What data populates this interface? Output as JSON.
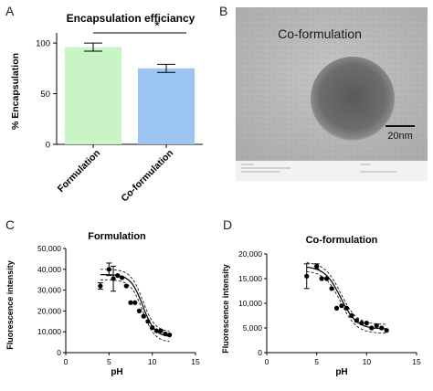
{
  "panels": {
    "a": "A",
    "b": "B",
    "c": "C",
    "d": "D"
  },
  "colors": {
    "formulation_bar": "#c9f5c6",
    "coformulation_bar": "#9cc5f2",
    "axis": "#000000",
    "tem_background": "#b9b9b9",
    "tem_particle": "#6a6a6a"
  },
  "chart_data": [
    {
      "type": "bar",
      "title": "Encapsulation efficiancy",
      "xlabel": "",
      "ylabel": "% Encapsulation",
      "categories": [
        "Formulation",
        "Co-formulation"
      ],
      "values": [
        96,
        75
      ],
      "errors": [
        4,
        4
      ],
      "ylim": [
        0,
        110
      ],
      "yticks": [
        "0",
        "50",
        "100"
      ],
      "yticks_values": [
        0,
        50,
        100
      ],
      "significance": "*",
      "grid": false
    },
    {
      "type": "scatter",
      "title": "Formulation",
      "xlabel": "pH",
      "ylabel": "Fluorescence intensity",
      "xlim": [
        0,
        15
      ],
      "ylim": [
        0,
        50000
      ],
      "xticks": [
        "0",
        "5",
        "10",
        "15"
      ],
      "xticks_values": [
        0,
        5,
        10,
        15
      ],
      "yticks": [
        "0",
        "10,000",
        "20,000",
        "30,000",
        "40,000",
        "50,000"
      ],
      "yticks_values": [
        0,
        10000,
        20000,
        30000,
        40000,
        50000
      ],
      "points": [
        {
          "x": 4.0,
          "y": 32000,
          "err": 1500
        },
        {
          "x": 5.0,
          "y": 40000,
          "err": 3000
        },
        {
          "x": 5.5,
          "y": 35500,
          "err": 6000
        },
        {
          "x": 6.0,
          "y": 37000,
          "err": 0
        },
        {
          "x": 6.5,
          "y": 36000,
          "err": 0
        },
        {
          "x": 7.0,
          "y": 32000,
          "err": 0
        },
        {
          "x": 7.5,
          "y": 24000,
          "err": 0
        },
        {
          "x": 8.0,
          "y": 24000,
          "err": 0
        },
        {
          "x": 8.5,
          "y": 20000,
          "err": 0
        },
        {
          "x": 9.0,
          "y": 17500,
          "err": 0
        },
        {
          "x": 9.5,
          "y": 15000,
          "err": 0
        },
        {
          "x": 10.0,
          "y": 12000,
          "err": 0
        },
        {
          "x": 10.5,
          "y": 10500,
          "err": 0
        },
        {
          "x": 11.0,
          "y": 10500,
          "err": 0
        },
        {
          "x": 11.5,
          "y": 9000,
          "err": 0
        },
        {
          "x": 12.0,
          "y": 8500,
          "err": 0
        }
      ],
      "fit": {
        "top": 37500,
        "bottom": 7500,
        "mid": 8.9,
        "slope": 0.7
      },
      "band": 2500,
      "grid": false
    },
    {
      "type": "scatter",
      "title": "Co-formulation",
      "xlabel": "pH",
      "ylabel": "Fluorescence intensity",
      "xlim": [
        0,
        15
      ],
      "ylim": [
        0,
        20000
      ],
      "xticks": [
        "0",
        "5",
        "10",
        "15"
      ],
      "xticks_values": [
        0,
        5,
        10,
        15
      ],
      "yticks": [
        "0",
        "5,000",
        "10,000",
        "15,000",
        "20,000"
      ],
      "yticks_values": [
        0,
        5000,
        10000,
        15000,
        20000
      ],
      "points": [
        {
          "x": 4.0,
          "y": 15500,
          "err": 2500
        },
        {
          "x": 5.0,
          "y": 17500,
          "err": 500
        },
        {
          "x": 5.5,
          "y": 15000,
          "err": 0
        },
        {
          "x": 6.0,
          "y": 15000,
          "err": 0
        },
        {
          "x": 6.5,
          "y": 13000,
          "err": 0
        },
        {
          "x": 7.0,
          "y": 9000,
          "err": 0
        },
        {
          "x": 7.5,
          "y": 9500,
          "err": 0
        },
        {
          "x": 8.0,
          "y": 9000,
          "err": 0
        },
        {
          "x": 8.5,
          "y": 7500,
          "err": 0
        },
        {
          "x": 9.0,
          "y": 6500,
          "err": 0
        },
        {
          "x": 9.5,
          "y": 6000,
          "err": 0
        },
        {
          "x": 10.0,
          "y": 6000,
          "err": 0
        },
        {
          "x": 10.5,
          "y": 5000,
          "err": 0
        },
        {
          "x": 11.0,
          "y": 5500,
          "err": 0
        },
        {
          "x": 11.5,
          "y": 5000,
          "err": 0
        },
        {
          "x": 12.0,
          "y": 4500,
          "err": 0
        }
      ],
      "fit": {
        "top": 17500,
        "bottom": 4800,
        "mid": 7.4,
        "slope": 0.8
      },
      "band": 900,
      "grid": false
    }
  ],
  "tem": {
    "caption": "Co-formulation",
    "scale_label": "20nm"
  }
}
